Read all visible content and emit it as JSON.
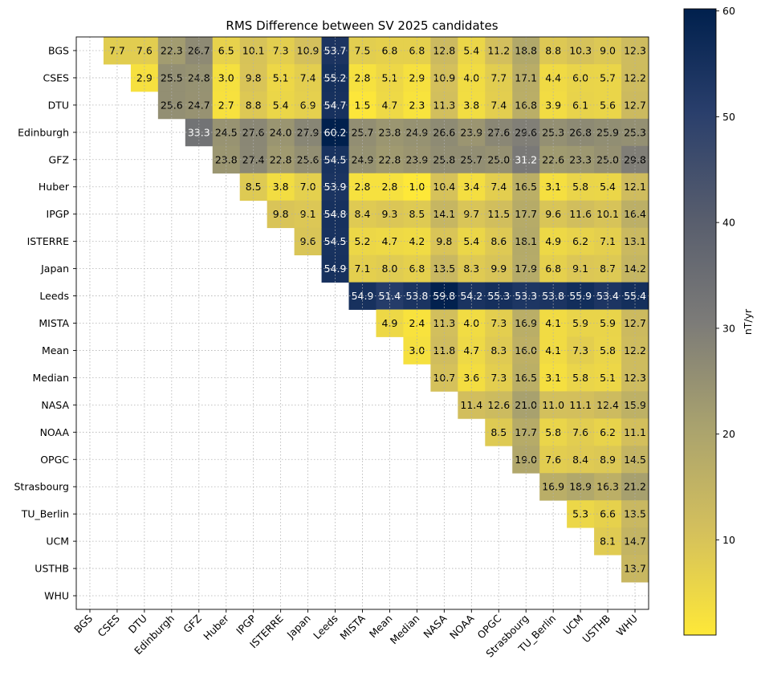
{
  "chart_data": {
    "type": "heatmap",
    "title": "RMS Difference between SV 2025 candidates",
    "labels": [
      "BGS",
      "CSES",
      "DTU",
      "Edinburgh",
      "GFZ",
      "Huber",
      "IPGP",
      "ISTERRE",
      "Japan",
      "Leeds",
      "MISTA",
      "Mean",
      "Median",
      "NASA",
      "NOAA",
      "OPGC",
      "Strasbourg",
      "TU_Berlin",
      "UCM",
      "USTHB",
      "WHU"
    ],
    "matrix": [
      [
        null,
        7.7,
        7.6,
        22.3,
        26.7,
        6.5,
        10.1,
        7.3,
        10.9,
        53.7,
        7.5,
        6.8,
        6.8,
        12.8,
        5.4,
        11.2,
        18.8,
        8.8,
        10.3,
        9.0,
        12.3
      ],
      [
        null,
        null,
        2.9,
        25.5,
        24.8,
        3.0,
        9.8,
        5.1,
        7.4,
        55.2,
        2.8,
        5.1,
        2.9,
        10.9,
        4.0,
        7.7,
        17.1,
        4.4,
        6.0,
        5.7,
        12.2
      ],
      [
        null,
        null,
        null,
        25.6,
        24.7,
        2.7,
        8.8,
        5.4,
        6.9,
        54.7,
        1.5,
        4.7,
        2.3,
        11.3,
        3.8,
        7.4,
        16.8,
        3.9,
        6.1,
        5.6,
        12.7
      ],
      [
        null,
        null,
        null,
        null,
        33.3,
        24.5,
        27.6,
        24.0,
        27.9,
        60.2,
        25.7,
        23.8,
        24.9,
        26.6,
        23.9,
        27.6,
        29.6,
        25.3,
        26.8,
        25.9,
        25.3
      ],
      [
        null,
        null,
        null,
        null,
        null,
        23.8,
        27.4,
        22.8,
        25.6,
        54.5,
        24.9,
        22.8,
        23.9,
        25.8,
        25.7,
        25.0,
        31.2,
        22.6,
        23.3,
        25.0,
        29.8
      ],
      [
        null,
        null,
        null,
        null,
        null,
        null,
        8.5,
        3.8,
        7.0,
        53.9,
        2.8,
        2.8,
        1.0,
        10.4,
        3.4,
        7.4,
        16.5,
        3.1,
        5.8,
        5.4,
        12.1
      ],
      [
        null,
        null,
        null,
        null,
        null,
        null,
        null,
        9.8,
        9.1,
        54.8,
        8.4,
        9.3,
        8.5,
        14.1,
        9.7,
        11.5,
        17.7,
        9.6,
        11.6,
        10.1,
        16.4
      ],
      [
        null,
        null,
        null,
        null,
        null,
        null,
        null,
        null,
        9.6,
        54.5,
        5.2,
        4.7,
        4.2,
        9.8,
        5.4,
        8.6,
        18.1,
        4.9,
        6.2,
        7.1,
        13.1
      ],
      [
        null,
        null,
        null,
        null,
        null,
        null,
        null,
        null,
        null,
        54.9,
        7.1,
        8.0,
        6.8,
        13.5,
        8.3,
        9.9,
        17.9,
        6.8,
        9.1,
        8.7,
        14.2
      ],
      [
        null,
        null,
        null,
        null,
        null,
        null,
        null,
        null,
        null,
        null,
        54.9,
        51.4,
        53.8,
        59.8,
        54.2,
        55.3,
        53.3,
        53.8,
        55.9,
        53.4,
        55.4
      ],
      [
        null,
        null,
        null,
        null,
        null,
        null,
        null,
        null,
        null,
        null,
        null,
        4.9,
        2.4,
        11.3,
        4.0,
        7.3,
        16.9,
        4.1,
        5.9,
        5.9,
        12.7
      ],
      [
        null,
        null,
        null,
        null,
        null,
        null,
        null,
        null,
        null,
        null,
        null,
        null,
        3.0,
        11.8,
        4.7,
        8.3,
        16.0,
        4.1,
        7.3,
        5.8,
        12.2
      ],
      [
        null,
        null,
        null,
        null,
        null,
        null,
        null,
        null,
        null,
        null,
        null,
        null,
        null,
        10.7,
        3.6,
        7.3,
        16.5,
        3.1,
        5.8,
        5.1,
        12.3
      ],
      [
        null,
        null,
        null,
        null,
        null,
        null,
        null,
        null,
        null,
        null,
        null,
        null,
        null,
        null,
        11.4,
        12.6,
        21.0,
        11.0,
        11.1,
        12.4,
        15.9
      ],
      [
        null,
        null,
        null,
        null,
        null,
        null,
        null,
        null,
        null,
        null,
        null,
        null,
        null,
        null,
        null,
        8.5,
        17.7,
        5.8,
        7.6,
        6.2,
        11.1
      ],
      [
        null,
        null,
        null,
        null,
        null,
        null,
        null,
        null,
        null,
        null,
        null,
        null,
        null,
        null,
        null,
        null,
        19.0,
        7.6,
        8.4,
        8.9,
        14.5
      ],
      [
        null,
        null,
        null,
        null,
        null,
        null,
        null,
        null,
        null,
        null,
        null,
        null,
        null,
        null,
        null,
        null,
        null,
        16.9,
        18.9,
        16.3,
        21.2
      ],
      [
        null,
        null,
        null,
        null,
        null,
        null,
        null,
        null,
        null,
        null,
        null,
        null,
        null,
        null,
        null,
        null,
        null,
        null,
        5.3,
        6.6,
        13.5
      ],
      [
        null,
        null,
        null,
        null,
        null,
        null,
        null,
        null,
        null,
        null,
        null,
        null,
        null,
        null,
        null,
        null,
        null,
        null,
        null,
        8.1,
        14.7
      ],
      [
        null,
        null,
        null,
        null,
        null,
        null,
        null,
        null,
        null,
        null,
        null,
        null,
        null,
        null,
        null,
        null,
        null,
        null,
        null,
        null,
        13.7
      ],
      [
        null,
        null,
        null,
        null,
        null,
        null,
        null,
        null,
        null,
        null,
        null,
        null,
        null,
        null,
        null,
        null,
        null,
        null,
        null,
        null,
        null
      ]
    ],
    "colorbar": {
      "label": "nT/yr",
      "range": [
        1.0,
        60.2
      ],
      "ticks": [
        "10",
        "20",
        "30",
        "40",
        "50",
        "60"
      ],
      "tick_values": [
        10,
        20,
        30,
        40,
        50,
        60
      ],
      "colormap": "cividis_r",
      "colors": [
        "#fee838",
        "#d4c05c",
        "#a9a26e",
        "#7c7b78",
        "#575d6d",
        "#2a3f6c",
        "#00204d"
      ]
    },
    "grid": true,
    "text_threshold": 30
  }
}
